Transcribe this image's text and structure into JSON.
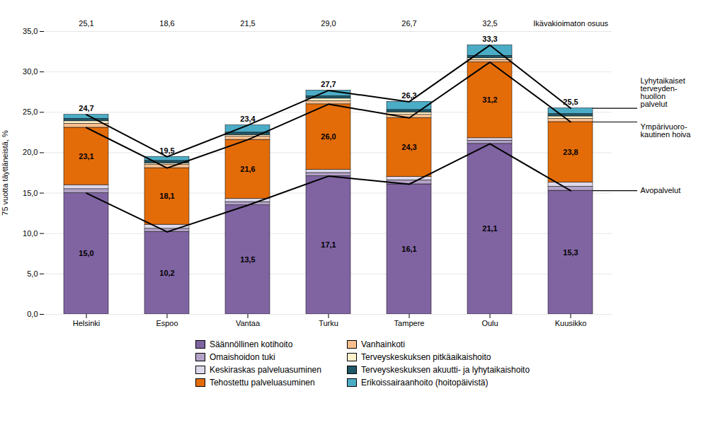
{
  "chart_data": {
    "type": "bar",
    "stacked": true,
    "data_labels": true,
    "grid": true,
    "legend": "bottom",
    "categories": [
      "Helsinki",
      "Espoo",
      "Vantaa",
      "Turku",
      "Tampere",
      "Oulu",
      "Kuusikko"
    ],
    "ylabel": "75 vuotta täyttäneistä, %",
    "ylim": [
      0,
      35
    ],
    "yticks": [
      {
        "value": 0,
        "label": "0,0"
      },
      {
        "value": 5,
        "label": "5,0"
      },
      {
        "value": 10,
        "label": "10,0"
      },
      {
        "value": 15,
        "label": "15,0"
      },
      {
        "value": 20,
        "label": "20,0"
      },
      {
        "value": 25,
        "label": "25,0"
      },
      {
        "value": 30,
        "label": "30,0"
      },
      {
        "value": 35,
        "label": "35,0"
      }
    ],
    "series": [
      {
        "name": "Säännöllinen kotihoito",
        "color": "#8064A2",
        "values": [
          15.0,
          10.2,
          13.5,
          17.1,
          16.1,
          21.1,
          15.3
        ]
      },
      {
        "name": "Omaishoidon tuki",
        "color": "#B3A2C7",
        "values": [
          0.5,
          0.4,
          0.4,
          0.4,
          0.5,
          0.4,
          0.5
        ]
      },
      {
        "name": "Keskiraskas palveluasuminen",
        "color": "#DDD9EC",
        "values": [
          0.5,
          0.5,
          0.4,
          0.4,
          0.4,
          0.3,
          0.5
        ]
      },
      {
        "name": "Tehostettu palveluasuminen",
        "color": "#E36C09",
        "values": [
          7.1,
          7.0,
          7.3,
          8.1,
          7.3,
          9.4,
          7.5
        ]
      },
      {
        "name": "Vanhainkoti",
        "color": "#FABF8F",
        "values": [
          0.5,
          0.4,
          0.4,
          0.4,
          0.4,
          0.3,
          0.4
        ]
      },
      {
        "name": "Terveyskeskuksen pitkäaikaishoito",
        "color": "#FFF2CC",
        "values": [
          0.3,
          0.2,
          0.2,
          0.3,
          0.3,
          0.2,
          0.3
        ]
      },
      {
        "name": "Terveyskeskuksen akuutti- ja lyhytaikaishoito",
        "color": "#215868",
        "values": [
          0.3,
          0.3,
          0.3,
          0.3,
          0.3,
          0.3,
          0.3
        ]
      },
      {
        "name": "Erikoissairaanhoito (hoitopäivistä)",
        "color": "#4BACC6",
        "values": [
          0.5,
          0.5,
          0.9,
          0.7,
          1.0,
          1.3,
          0.7
        ]
      },
      {
        "name": "Avopalvelut",
        "type": "line",
        "color": "#000000",
        "values": [
          15.0,
          10.2,
          13.5,
          17.1,
          16.1,
          21.1,
          15.3
        ],
        "value_labels": [
          "15,0",
          "10,2",
          "13,5",
          "17,1",
          "16,1",
          "21,1",
          "15,3"
        ]
      },
      {
        "name": "Ympärivuoro-\nkautinen hoiva",
        "type": "line",
        "color": "#000000",
        "values": [
          23.1,
          18.1,
          21.6,
          26.0,
          24.3,
          31.2,
          23.8
        ],
        "value_labels": [
          "23,1",
          "18,1",
          "21,6",
          "26,0",
          "24,3",
          "31,2",
          "23,8"
        ]
      },
      {
        "name": "Lyhytaikaiset\nterveyden-\nhuollon\npalvelut",
        "type": "line",
        "color": "#000000",
        "values": [
          24.7,
          19.5,
          23.4,
          27.7,
          26.3,
          33.3,
          25.5
        ],
        "value_labels": [
          "24,7",
          "19,5",
          "23,4",
          "27,7",
          "26,3",
          "33,3",
          "25,5"
        ]
      }
    ],
    "top_row": {
      "name": "Ikävakioimaton osuus",
      "values": [
        25.1,
        18.6,
        21.5,
        29.0,
        26.7,
        32.5,
        null
      ],
      "value_labels": [
        "25,1",
        "18,6",
        "21,5",
        "29,0",
        "26,7",
        "32,5",
        null
      ]
    }
  }
}
